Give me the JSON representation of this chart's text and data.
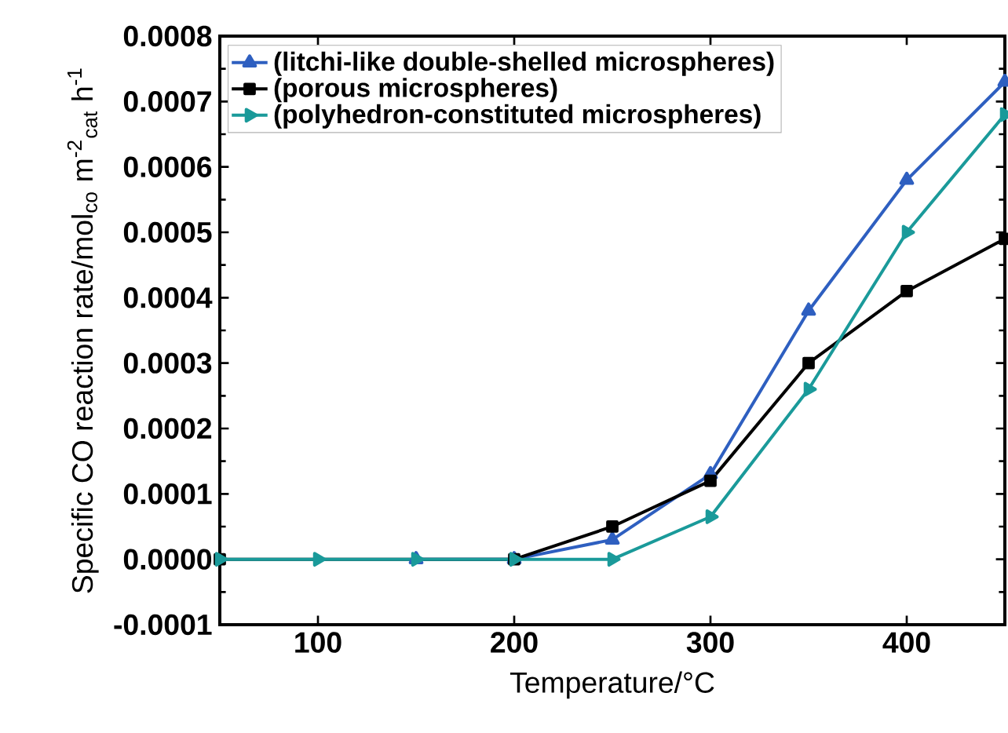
{
  "chart_data": {
    "type": "line",
    "xlabel": "Temperature/°C",
    "ylabel": "Specific CO reaction rate/mol$_{co}$ m$^{-2}$$_{cat}$ h$^{-1}$",
    "x": [
      50,
      100,
      150,
      200,
      250,
      300,
      350,
      400,
      450
    ],
    "series": [
      {
        "name": "(litchi-like double-shelled microspheres)",
        "color": "#2e5fc0",
        "marker": "triangle",
        "values": [
          null,
          null,
          0,
          0,
          3e-05,
          0.00013,
          0.00038,
          0.00058,
          0.00073
        ]
      },
      {
        "name": "(porous microspheres)",
        "color": "#000000",
        "marker": "square",
        "values": [
          0,
          null,
          null,
          0,
          5e-05,
          0.00012,
          0.0003,
          0.00041,
          0.00049
        ]
      },
      {
        "name": "(polyhedron-constituted microspheres)",
        "color": "#1a9a9a",
        "marker": "triangle-right",
        "values": [
          0,
          0,
          0,
          0,
          0,
          6.5e-05,
          0.00026,
          0.0005,
          0.00068
        ]
      }
    ],
    "xlim": [
      50,
      450
    ],
    "ylim": [
      -0.0001,
      0.0008
    ],
    "xticks": [
      100,
      200,
      300,
      400
    ],
    "yticks": [
      {
        "value": -0.0001,
        "label": "-0.0001"
      },
      {
        "value": 0,
        "label": "0.0000"
      },
      {
        "value": 0.0001,
        "label": "0.0001"
      },
      {
        "value": 0.0002,
        "label": "0.0002"
      },
      {
        "value": 0.0003,
        "label": "0.0003"
      },
      {
        "value": 0.0004,
        "label": "0.0004"
      },
      {
        "value": 0.0005,
        "label": "0.0005"
      },
      {
        "value": 0.0006,
        "label": "0.0006"
      },
      {
        "value": 0.0007,
        "label": "0.0007"
      },
      {
        "value": 0.0008,
        "label": "0.0008"
      }
    ],
    "legend": "top left",
    "grid": false,
    "line_style": "solid"
  }
}
